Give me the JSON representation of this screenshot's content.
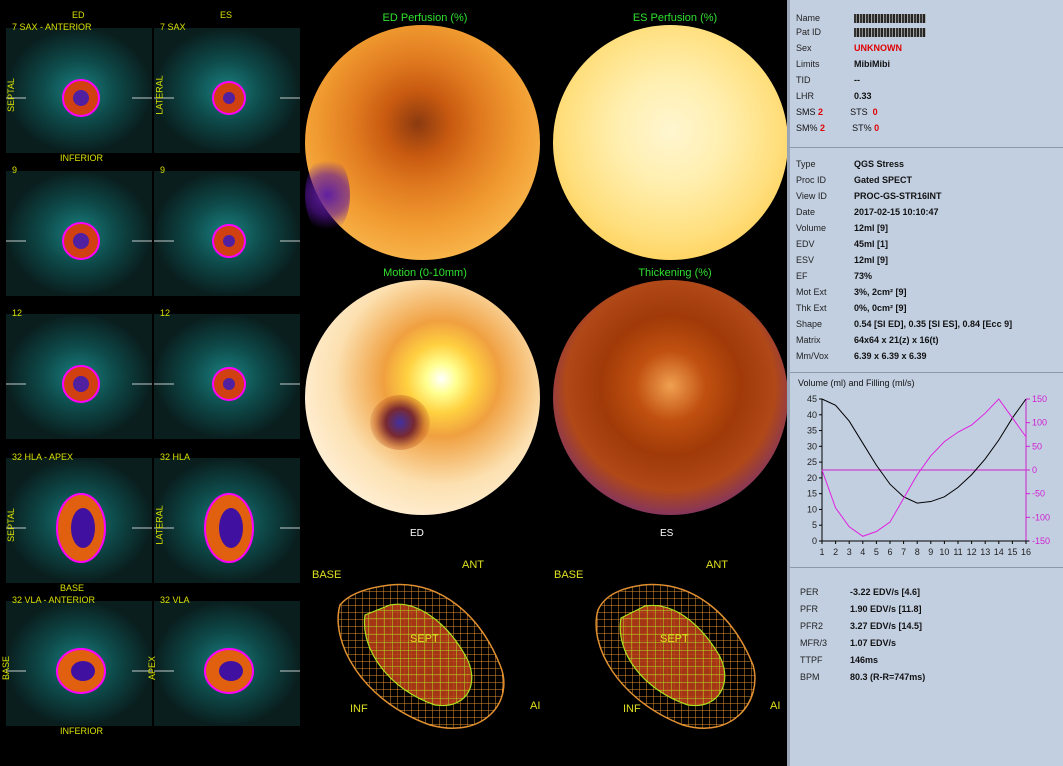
{
  "left_panel": {
    "col_headers": [
      "ED",
      "ES"
    ],
    "rows": [
      {
        "left_label": "7    SAX - ANTERIOR",
        "right_label": "7 SAX",
        "side_l": "SEPTAL",
        "side_r": "LATERAL",
        "bottom": "INFERIOR"
      },
      {
        "left_label": "9",
        "right_label": "9",
        "side_l": "",
        "side_r": "",
        "bottom": ""
      },
      {
        "left_label": "12",
        "right_label": "12",
        "side_l": "",
        "side_r": "",
        "bottom": ""
      },
      {
        "left_label": "32    HLA - APEX",
        "right_label": "32 HLA",
        "side_l": "SEPTAL",
        "side_r": "LATERAL",
        "bottom": "BASE"
      },
      {
        "left_label": "32    VLA - ANTERIOR",
        "right_label": "32 VLA",
        "side_l": "BASE",
        "side_r": "APEX",
        "bottom": "INFERIOR"
      }
    ]
  },
  "polar_maps": {
    "ed_perfusion": "ED Perfusion (%)",
    "es_perfusion": "ES Perfusion (%)",
    "motion": "Motion (0-10mm)",
    "thickening": "Thickening (%)",
    "ed_label": "ED",
    "es_label": "ES"
  },
  "mesh_views": {
    "left": {
      "base": "BASE",
      "ant": "ANT",
      "sept": "SEPT",
      "inf": "INF",
      "ai": "AI"
    },
    "right": {
      "base": "BASE",
      "ant": "ANT",
      "sept": "SEPT",
      "inf": "INF",
      "ai": "AI"
    }
  },
  "patient": {
    "name_label": "Name",
    "patid_label": "Pat ID",
    "sex_label": "Sex",
    "sex": "UNKNOWN",
    "limits_label": "Limits",
    "limits": "MibiMibi",
    "tid_label": "TID",
    "tid": "--",
    "lhr_label": "LHR",
    "lhr": "0.33",
    "sms_label": "SMS",
    "sms": "2",
    "sts_label": "STS",
    "sts": "0",
    "smp_label": "SM%",
    "smp": "2",
    "stp_label": "ST%",
    "stp": "0"
  },
  "study": [
    {
      "label": "Type",
      "value": "QGS Stress"
    },
    {
      "label": "Proc ID",
      "value": "Gated SPECT"
    },
    {
      "label": "View ID",
      "value": "PROC-GS-STR16INT"
    },
    {
      "label": "Date",
      "value": "2017-02-15 10:10:47"
    },
    {
      "label": "Volume",
      "value": "12ml [9]"
    },
    {
      "label": "EDV",
      "value": "45ml [1]"
    },
    {
      "label": "ESV",
      "value": "12ml [9]"
    },
    {
      "label": "EF",
      "value": "73%"
    },
    {
      "label": "Mot Ext",
      "value": "3%, 2cm² [9]"
    },
    {
      "label": "Thk Ext",
      "value": "0%, 0cm² [9]"
    },
    {
      "label": "Shape",
      "value": "0.54 [SI ED],  0.35 [SI ES],  0.84 [Ecc 9]"
    },
    {
      "label": "Matrix",
      "value": "64x64 x 21(z) x 16(t)"
    },
    {
      "label": "Mm/Vox",
      "value": "6.39 x 6.39 x 6.39"
    }
  ],
  "chart_data": {
    "type": "line",
    "title": "Volume (ml) and Filling (ml/s)",
    "x": [
      1,
      2,
      3,
      4,
      5,
      6,
      7,
      8,
      9,
      10,
      11,
      12,
      13,
      14,
      15,
      16
    ],
    "xlim": [
      1,
      16
    ],
    "ylim_left": [
      0,
      45
    ],
    "ylim_right": [
      -150,
      150
    ],
    "left_ticks": [
      0,
      5,
      10,
      15,
      20,
      25,
      30,
      35,
      40,
      45
    ],
    "right_ticks": [
      150,
      100,
      50,
      0,
      -50,
      -100,
      -150
    ],
    "series": [
      {
        "axis": "left",
        "color": "#000000",
        "values": [
          45,
          43,
          38,
          31,
          24,
          18,
          14,
          12,
          12.5,
          14,
          17,
          21,
          26,
          32,
          39,
          45
        ]
      },
      {
        "axis": "right",
        "color": "#e020e0",
        "values": [
          0,
          -80,
          -120,
          -140,
          -130,
          -110,
          -60,
          -10,
          30,
          60,
          80,
          95,
          120,
          150,
          110,
          70
        ]
      }
    ],
    "zero_line_right": 0,
    "grid": false
  },
  "filling": [
    {
      "label": "PER",
      "value": "-3.22 EDV/s [4.6]"
    },
    {
      "label": "PFR",
      "value": "1.90 EDV/s [11.8]"
    },
    {
      "label": "PFR2",
      "value": "3.27 EDV/s [14.5]"
    },
    {
      "label": "MFR/3",
      "value": "1.07 EDV/s"
    },
    {
      "label": "TTPF",
      "value": "146ms"
    },
    {
      "label": "BPM",
      "value": "80.3 (R-R=747ms)"
    }
  ],
  "colors": {
    "label_green": "#d8e000",
    "title_green": "#30e030",
    "red": "#e00000",
    "panel_bg": "#c2cfe1"
  }
}
